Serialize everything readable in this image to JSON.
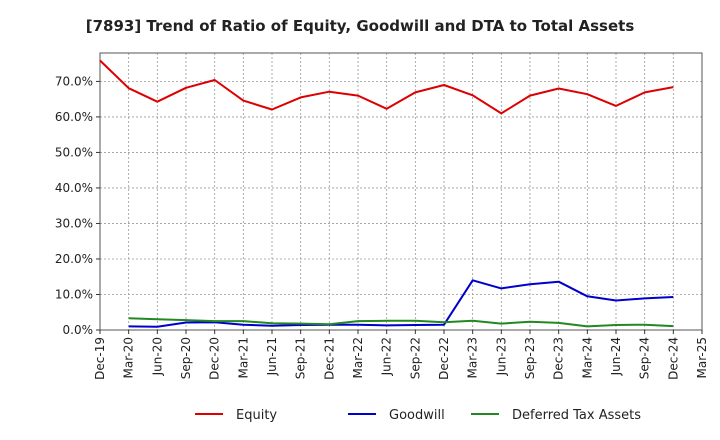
{
  "chart_data": {
    "type": "line",
    "title": "[7893]  Trend of Ratio of Equity, Goodwill and DTA to Total Assets",
    "xlabel": "",
    "ylabel": "",
    "x_ticks": [
      "Dec-19",
      "Mar-20",
      "Jun-20",
      "Sep-20",
      "Dec-20",
      "Mar-21",
      "Jun-21",
      "Sep-21",
      "Dec-21",
      "Mar-22",
      "Jun-22",
      "Sep-22",
      "Dec-22",
      "Mar-23",
      "Jun-23",
      "Sep-23",
      "Dec-23",
      "Mar-24",
      "Jun-24",
      "Sep-24",
      "Dec-24",
      "Mar-25"
    ],
    "y_ticks": [
      "0.0%",
      "10.0%",
      "20.0%",
      "30.0%",
      "40.0%",
      "50.0%",
      "60.0%",
      "70.0%"
    ],
    "y_tick_values": [
      0,
      10,
      20,
      30,
      40,
      50,
      60,
      70
    ],
    "ylim": [
      0,
      78
    ],
    "grid": true,
    "legend_position": "bottom",
    "series": [
      {
        "name": "Equity",
        "color": "#dd0000",
        "values": [
          75.9,
          68.1,
          64.3,
          68.2,
          70.4,
          64.6,
          62.1,
          65.5,
          67.1,
          66.0,
          62.3,
          66.9,
          69.0,
          66.1,
          61.0,
          66.0,
          68.0,
          66.4,
          63.1,
          66.9,
          68.4,
          null
        ]
      },
      {
        "name": "Goodwill",
        "color": "#0000cc",
        "values": [
          null,
          1.0,
          0.9,
          2.1,
          2.2,
          1.5,
          1.2,
          1.4,
          1.5,
          1.5,
          1.3,
          1.4,
          1.5,
          14.0,
          11.7,
          12.9,
          13.6,
          9.5,
          8.3,
          8.9,
          9.3,
          null
        ]
      },
      {
        "name": "Deferred Tax Assets",
        "color": "#228822",
        "values": [
          null,
          3.3,
          3.0,
          2.8,
          2.5,
          2.5,
          1.9,
          1.8,
          1.6,
          2.5,
          2.6,
          2.6,
          2.2,
          2.6,
          1.8,
          2.3,
          2.0,
          1.0,
          1.4,
          1.5,
          1.1,
          null
        ]
      }
    ]
  }
}
